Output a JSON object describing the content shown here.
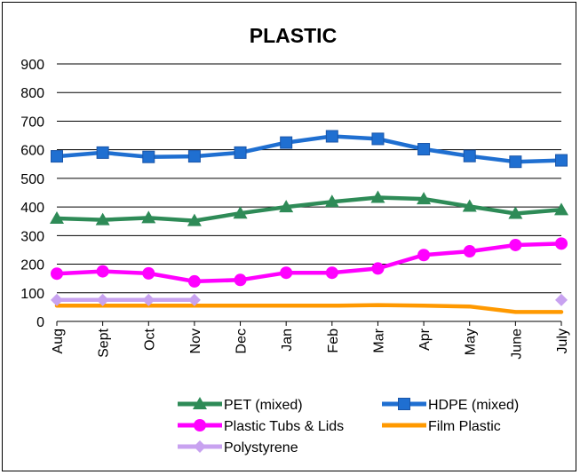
{
  "chart_data": {
    "type": "line",
    "title": "PLASTIC",
    "xlabel": "",
    "ylabel": "",
    "categories": [
      "Aug",
      "Sept",
      "Oct",
      "Nov",
      "Dec",
      "Jan",
      "Feb",
      "Mar",
      "Apr",
      "May",
      "June",
      "July"
    ],
    "ylim": [
      0,
      900
    ],
    "yticks": [
      0,
      100,
      200,
      300,
      400,
      500,
      600,
      700,
      800,
      900
    ],
    "grid": true,
    "legend_position": "bottom",
    "series": [
      {
        "name": "PET (mixed)",
        "color": "#2e8b57",
        "marker": "triangle",
        "values": [
          360,
          355,
          362,
          352,
          378,
          400,
          418,
          433,
          428,
          402,
          377,
          390
        ]
      },
      {
        "name": "HDPE (mixed)",
        "color": "#1f6fd1",
        "marker": "square",
        "values": [
          577,
          590,
          575,
          577,
          590,
          625,
          647,
          638,
          602,
          578,
          558,
          563
        ]
      },
      {
        "name": "Plastic Tubs & Lids",
        "color": "#ff00ff",
        "marker": "circle",
        "values": [
          167,
          175,
          168,
          140,
          145,
          170,
          170,
          185,
          232,
          245,
          267,
          272
        ]
      },
      {
        "name": "Film Plastic",
        "color": "#ff9900",
        "marker": "none",
        "values": [
          55,
          55,
          55,
          55,
          55,
          55,
          55,
          57,
          55,
          52,
          33,
          33
        ]
      },
      {
        "name": "Polystyrene",
        "color": "#c8a2f0",
        "marker": "diamond",
        "values": [
          75,
          75,
          75,
          75,
          null,
          null,
          null,
          null,
          null,
          null,
          null,
          75
        ]
      }
    ]
  }
}
